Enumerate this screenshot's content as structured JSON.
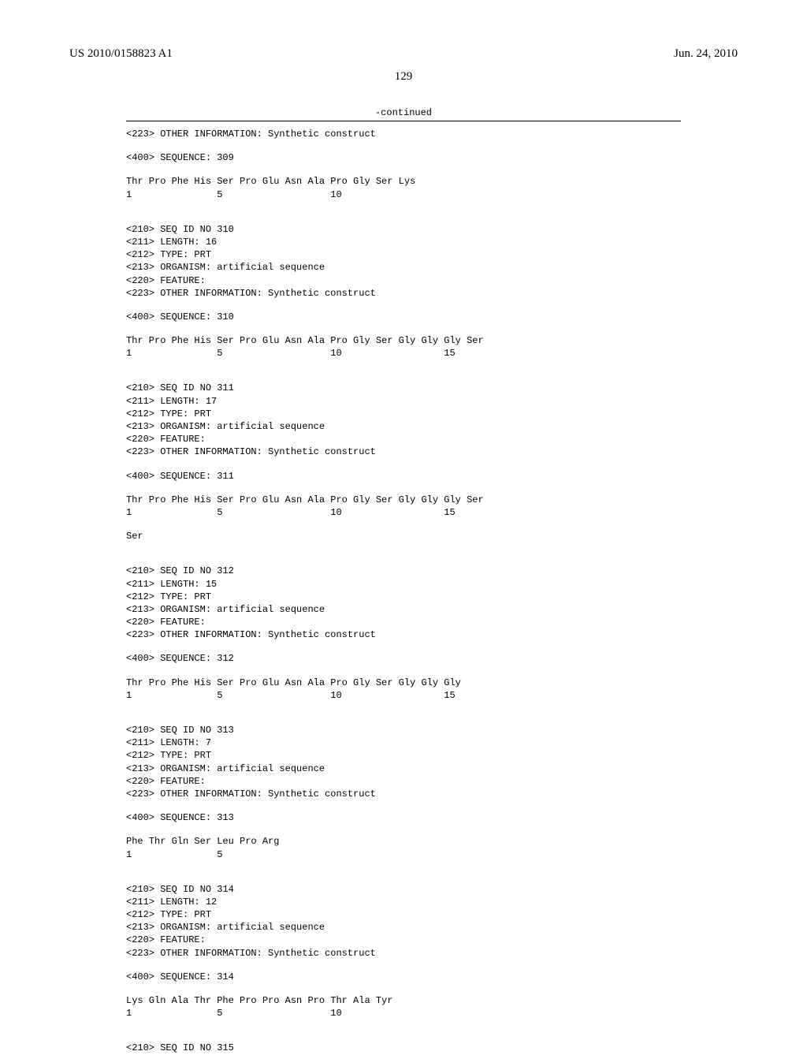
{
  "header": {
    "pub_number": "US 2010/0158823 A1",
    "date": "Jun. 24, 2010"
  },
  "page_number": "129",
  "continued_label": "-continued",
  "top_info": "<223> OTHER INFORMATION: Synthetic construct",
  "seq_309": {
    "tag_400": "<400> SEQUENCE: 309",
    "peptide": "Thr Pro Phe His Ser Pro Glu Asn Ala Pro Gly Ser Lys",
    "numbers": "1               5                   10"
  },
  "seq_310": {
    "tag_210": "<210> SEQ ID NO 310",
    "tag_211": "<211> LENGTH: 16",
    "tag_212": "<212> TYPE: PRT",
    "tag_213": "<213> ORGANISM: artificial sequence",
    "tag_220": "<220> FEATURE:",
    "tag_223": "<223> OTHER INFORMATION: Synthetic construct",
    "tag_400": "<400> SEQUENCE: 310",
    "peptide": "Thr Pro Phe His Ser Pro Glu Asn Ala Pro Gly Ser Gly Gly Gly Ser",
    "numbers": "1               5                   10                  15"
  },
  "seq_311": {
    "tag_210": "<210> SEQ ID NO 311",
    "tag_211": "<211> LENGTH: 17",
    "tag_212": "<212> TYPE: PRT",
    "tag_213": "<213> ORGANISM: artificial sequence",
    "tag_220": "<220> FEATURE:",
    "tag_223": "<223> OTHER INFORMATION: Synthetic construct",
    "tag_400": "<400> SEQUENCE: 311",
    "peptide": "Thr Pro Phe His Ser Pro Glu Asn Ala Pro Gly Ser Gly Gly Gly Ser",
    "numbers": "1               5                   10                  15",
    "peptide2": "Ser"
  },
  "seq_312": {
    "tag_210": "<210> SEQ ID NO 312",
    "tag_211": "<211> LENGTH: 15",
    "tag_212": "<212> TYPE: PRT",
    "tag_213": "<213> ORGANISM: artificial sequence",
    "tag_220": "<220> FEATURE:",
    "tag_223": "<223> OTHER INFORMATION: Synthetic construct",
    "tag_400": "<400> SEQUENCE: 312",
    "peptide": "Thr Pro Phe His Ser Pro Glu Asn Ala Pro Gly Ser Gly Gly Gly",
    "numbers": "1               5                   10                  15"
  },
  "seq_313": {
    "tag_210": "<210> SEQ ID NO 313",
    "tag_211": "<211> LENGTH: 7",
    "tag_212": "<212> TYPE: PRT",
    "tag_213": "<213> ORGANISM: artificial sequence",
    "tag_220": "<220> FEATURE:",
    "tag_223": "<223> OTHER INFORMATION: Synthetic construct",
    "tag_400": "<400> SEQUENCE: 313",
    "peptide": "Phe Thr Gln Ser Leu Pro Arg",
    "numbers": "1               5"
  },
  "seq_314": {
    "tag_210": "<210> SEQ ID NO 314",
    "tag_211": "<211> LENGTH: 12",
    "tag_212": "<212> TYPE: PRT",
    "tag_213": "<213> ORGANISM: artificial sequence",
    "tag_220": "<220> FEATURE:",
    "tag_223": "<223> OTHER INFORMATION: Synthetic construct",
    "tag_400": "<400> SEQUENCE: 314",
    "peptide": "Lys Gln Ala Thr Phe Pro Pro Asn Pro Thr Ala Tyr",
    "numbers": "1               5                   10"
  },
  "seq_315": {
    "tag_210": "<210> SEQ ID NO 315"
  }
}
